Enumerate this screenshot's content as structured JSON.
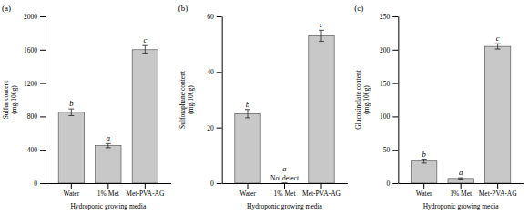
{
  "chart_data": [
    {
      "type": "bar",
      "title": "(a)",
      "ylabel": "Sulfur content\n(mg/100g)",
      "xlabel": "Hydroponic growing media",
      "categories": [
        "Water",
        "1% Met",
        "Met-PVA-AG"
      ],
      "values": [
        850,
        450,
        1600
      ],
      "errors": [
        40,
        25,
        50
      ],
      "color": "#c8c8c8",
      "annotations": [
        {
          "category": "Water",
          "text": "b"
        },
        {
          "category": "1% Met",
          "text": "a"
        },
        {
          "category": "Met-PVA-AG",
          "text": "c"
        }
      ],
      "ylim": [
        0,
        2000
      ],
      "yticks": [
        0,
        400,
        800,
        1200,
        1600,
        2000
      ],
      "grid": false
    },
    {
      "type": "bar",
      "title": "(b)",
      "ylabel": "Sulforaphane content\n(mg/100g)",
      "xlabel": "Hydroponic growing media",
      "categories": [
        "Water",
        "1% Met",
        "Met-PVA-AG"
      ],
      "values": [
        25,
        0,
        53
      ],
      "errors": [
        1.5,
        0,
        2
      ],
      "color": "#c8c8c8",
      "annotations": [
        {
          "category": "Water",
          "text": "b"
        },
        {
          "category": "1% Met",
          "text": "a"
        },
        {
          "category": "1% Met",
          "text": "Not detect"
        },
        {
          "category": "Met-PVA-AG",
          "text": "c"
        }
      ],
      "ylim": [
        0,
        60
      ],
      "yticks": [
        0,
        20,
        40,
        60
      ],
      "grid": false
    },
    {
      "type": "bar",
      "title": "(c)",
      "ylabel": "Glucosinolate content\n(mg/100g)",
      "xlabel": "Hydroponic growing media",
      "categories": [
        "Water",
        "1% Met",
        "Met-PVA-AG"
      ],
      "values": [
        33,
        7,
        205
      ],
      "errors": [
        3,
        1,
        4
      ],
      "color": "#c8c8c8",
      "annotations": [
        {
          "category": "Water",
          "text": "b"
        },
        {
          "category": "1% Met",
          "text": "a"
        },
        {
          "category": "Met-PVA-AG",
          "text": "c"
        }
      ],
      "ylim": [
        0,
        250
      ],
      "yticks": [
        0,
        50,
        100,
        150,
        200,
        250
      ],
      "grid": false
    }
  ]
}
